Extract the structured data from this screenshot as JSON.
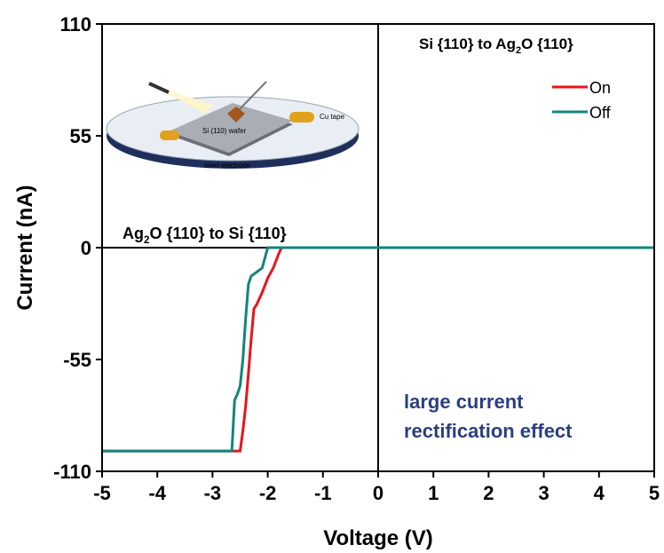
{
  "chart_data": {
    "type": "line",
    "xlabel": "Voltage (V)",
    "ylabel": "Current (nA)",
    "xlim": [
      -5,
      5
    ],
    "ylim": [
      -110,
      110
    ],
    "xticks": [
      -5,
      -4,
      -3,
      -2,
      -1,
      0,
      1,
      2,
      3,
      4,
      5
    ],
    "yticks": [
      -110,
      -55,
      0,
      55,
      110
    ],
    "legend": "top-right",
    "series": [
      {
        "name": "On",
        "color": "#e8151b",
        "x": [
          -5,
          -2.5,
          -2.45,
          -2.4,
          -2.35,
          -2.3,
          -2.25,
          -2.2,
          -2.1,
          -2.0,
          -1.9,
          -1.8,
          -1.75,
          5
        ],
        "values": [
          -100,
          -100,
          -90,
          -78,
          -62,
          -45,
          -30,
          -28,
          -22,
          -15,
          -10,
          -3,
          0,
          0
        ]
      },
      {
        "name": "Off",
        "color": "#12857c",
        "x": [
          -5,
          -2.65,
          -2.6,
          -2.55,
          -2.5,
          -2.45,
          -2.4,
          -2.35,
          -2.3,
          -2.2,
          -2.1,
          -2.05,
          -2.0,
          5
        ],
        "values": [
          -100,
          -100,
          -75,
          -72,
          -68,
          -55,
          -35,
          -18,
          -14,
          -12,
          -10,
          -5,
          0,
          0
        ]
      }
    ],
    "annotations": [
      {
        "parts": [
          "Si {110} to Ag",
          "2",
          "O {110}"
        ]
      },
      {
        "parts": [
          "Ag",
          "2",
          "O {110} to Si {110}"
        ]
      },
      {
        "lines": [
          "large current",
          "rectification effect"
        ],
        "color": "#2b3f7f"
      }
    ],
    "inset_labels": [
      "Cu tape",
      "Si (110) wafer",
      "steel electrode"
    ]
  }
}
